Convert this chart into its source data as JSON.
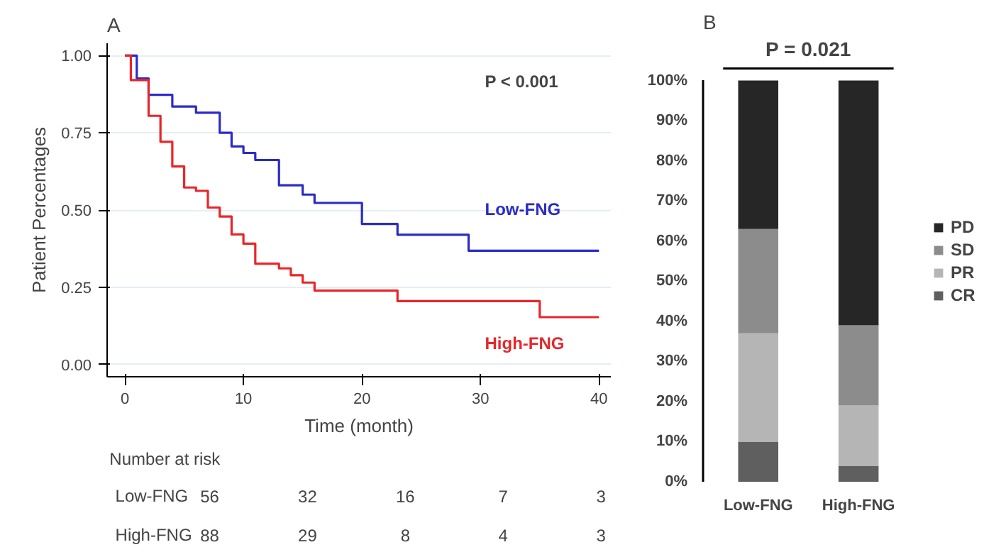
{
  "chart_data": [
    {
      "type": "step",
      "title": "A",
      "xlabel": "Time (month)",
      "ylabel": "Patient Percentages",
      "xlim": [
        -1.5,
        41
      ],
      "ylim": [
        -0.04,
        1.04
      ],
      "xticks": [
        0,
        10,
        20,
        30,
        40
      ],
      "yticks": [
        {
          "value": 0,
          "label": "0.00"
        },
        {
          "value": 0.25,
          "label": "0.25"
        },
        {
          "value": 0.5,
          "label": "0.50"
        },
        {
          "value": 0.75,
          "label": "0.75"
        },
        {
          "value": 1,
          "label": "1.00"
        }
      ],
      "grid": "y",
      "line_style": "solid",
      "annotations": [
        "P < 0.001",
        "Number at risk",
        "Low-FNG",
        "56",
        "32",
        "16",
        "7",
        "3",
        "High-FNG",
        "88",
        "29",
        "8",
        "4",
        "3"
      ],
      "series": [
        {
          "name": "Low-FNG",
          "color": "#2b2bc8",
          "x": [
            0,
            1,
            2,
            4,
            6,
            8,
            9,
            10,
            11,
            13,
            15,
            16,
            20,
            23,
            29,
            40
          ],
          "values": [
            1.0,
            0.926,
            0.873,
            0.835,
            0.815,
            0.75,
            0.706,
            0.685,
            0.662,
            0.58,
            0.55,
            0.523,
            0.455,
            0.42,
            0.368,
            0.368
          ]
        },
        {
          "name": "High-FNG",
          "color": "#e8262a",
          "x": [
            0,
            0.5,
            2,
            3,
            4,
            5,
            6,
            7,
            8,
            9,
            10,
            11,
            13,
            14,
            15,
            16,
            23,
            35,
            40
          ],
          "values": [
            1.0,
            0.921,
            0.805,
            0.721,
            0.641,
            0.573,
            0.562,
            0.508,
            0.479,
            0.421,
            0.391,
            0.326,
            0.311,
            0.289,
            0.265,
            0.239,
            0.205,
            0.153,
            0.153
          ]
        }
      ]
    },
    {
      "type": "bar",
      "title": "B",
      "stacked": true,
      "categories": [
        "Low-FNG",
        "High-FNG"
      ],
      "ylim": [
        0,
        100
      ],
      "yticks": [
        {
          "value": 0,
          "label": "0%"
        },
        {
          "value": 10,
          "label": "10%"
        },
        {
          "value": 20,
          "label": "20%"
        },
        {
          "value": 30,
          "label": "30%"
        },
        {
          "value": 40,
          "label": "40%"
        },
        {
          "value": 50,
          "label": "50%"
        },
        {
          "value": 60,
          "label": "60%"
        },
        {
          "value": 70,
          "label": "70%"
        },
        {
          "value": 80,
          "label": "80%"
        },
        {
          "value": 90,
          "label": "90%"
        },
        {
          "value": 100,
          "label": "100%"
        }
      ],
      "legend": "right",
      "annotations": [
        "P = 0.021"
      ],
      "series": [
        {
          "name": "CR",
          "color": "#5f5f5f",
          "values": [
            10,
            4
          ]
        },
        {
          "name": "PR",
          "color": "#b5b5b5",
          "values": [
            27,
            15
          ]
        },
        {
          "name": "SD",
          "color": "#8c8c8c",
          "values": [
            26,
            20
          ]
        },
        {
          "name": "PD",
          "color": "#262626",
          "values": [
            37,
            61
          ]
        }
      ]
    }
  ]
}
